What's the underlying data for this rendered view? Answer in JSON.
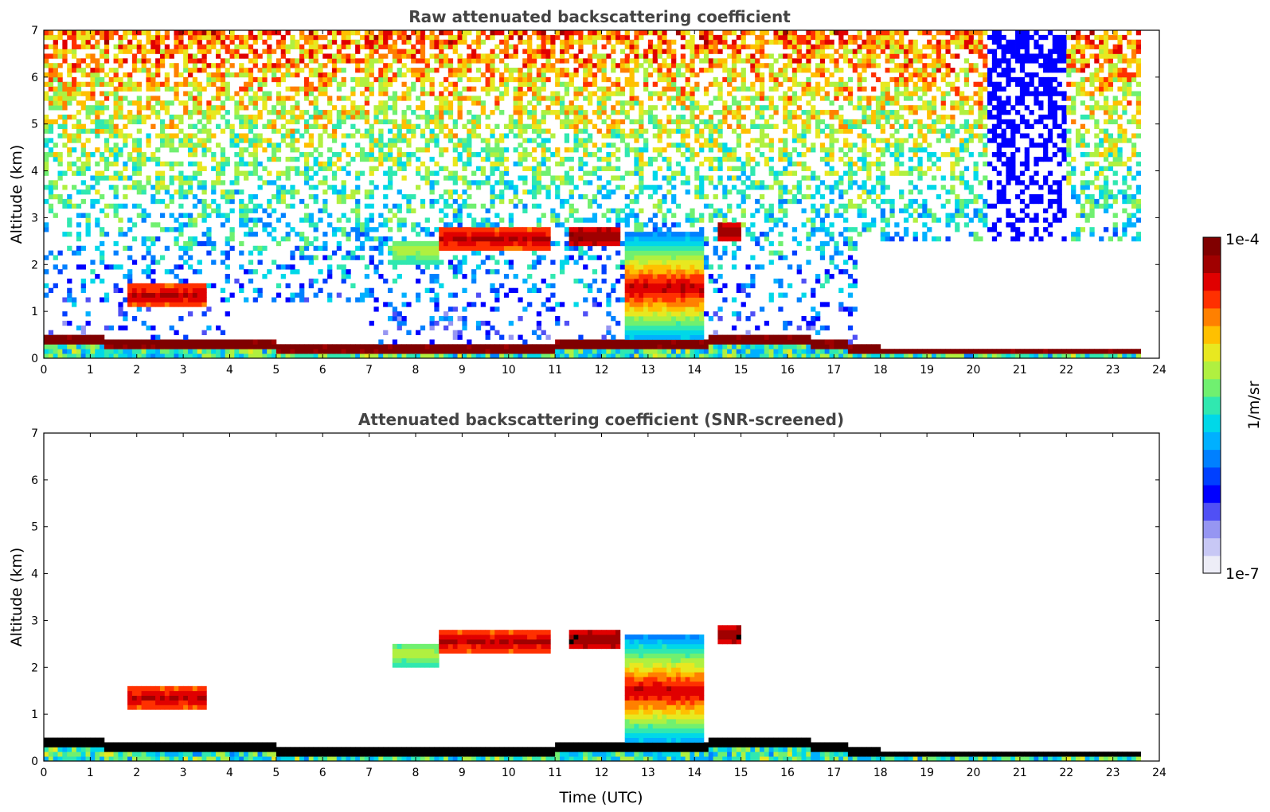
{
  "chart_data": [
    {
      "type": "heatmap",
      "title": "Raw attenuated backscattering coefficient",
      "xlabel": "",
      "ylabel": "Altitude (km)",
      "xlim": [
        0,
        24
      ],
      "ylim": [
        0,
        7
      ],
      "x_ticks": [
        "0",
        "1",
        "2",
        "3",
        "4",
        "5",
        "6",
        "7",
        "8",
        "9",
        "10",
        "11",
        "12",
        "13",
        "14",
        "15",
        "16",
        "17",
        "18",
        "19",
        "20",
        "21",
        "22",
        "23",
        "24"
      ],
      "y_ticks": [
        "0",
        "1",
        "2",
        "3",
        "4",
        "5",
        "6",
        "7"
      ],
      "data_end_hour": 23.6,
      "layers": [
        {
          "feature": "boundary layer",
          "altitude_km": [
            [
              0,
              0.5
            ],
            [
              2,
              0.35
            ],
            [
              5,
              0.3
            ],
            [
              8,
              0.2
            ],
            [
              10,
              0.25
            ],
            [
              11,
              0.3
            ],
            [
              16,
              0.45
            ],
            [
              17,
              0.35
            ],
            [
              18,
              0.2
            ],
            [
              23.6,
              0.2
            ]
          ],
          "level": 0.95
        },
        {
          "feature": "aerosol layer",
          "start": 1.8,
          "end": 3.5,
          "altitude_km": 1.35,
          "level": 0.9
        },
        {
          "feature": "cloud",
          "start": 7.5,
          "end": 8.5,
          "altitude_km": 2.3,
          "level": 0.6
        },
        {
          "feature": "cloud",
          "start": 8.5,
          "end": 10.9,
          "altitude_km": 2.55,
          "level": 0.9
        },
        {
          "feature": "cloud",
          "start": 11.3,
          "end": 12.4,
          "altitude_km": 2.6,
          "level": 0.95
        },
        {
          "feature": "cloud",
          "start": 14.5,
          "end": 15.0,
          "altitude_km": 2.7,
          "level": 0.95
        },
        {
          "feature": "convective cloud",
          "start": 12.5,
          "end": 14.2,
          "altitude_km": 1.5,
          "level": 0.9
        }
      ]
    },
    {
      "type": "heatmap",
      "title": "Attenuated backscattering coefficient (SNR-screened)",
      "xlabel": "Time (UTC)",
      "ylabel": "Altitude (km)",
      "xlim": [
        0,
        24
      ],
      "ylim": [
        0,
        7
      ],
      "x_ticks": [
        "0",
        "1",
        "2",
        "3",
        "4",
        "5",
        "6",
        "7",
        "8",
        "9",
        "10",
        "11",
        "12",
        "13",
        "14",
        "15",
        "16",
        "17",
        "18",
        "19",
        "20",
        "21",
        "22",
        "23",
        "24"
      ],
      "y_ticks": [
        "0",
        "1",
        "2",
        "3",
        "4",
        "5",
        "6",
        "7"
      ],
      "data_end_hour": 23.6,
      "note": "same features as raw panel with low-SNR noise removed; highest values shown in black"
    }
  ],
  "colorbar": {
    "label": "1/m/sr",
    "max_label": "1e-4",
    "min_label": "1e-7",
    "colors": [
      "#ededf7",
      "#c8c8f5",
      "#9696f2",
      "#5050f5",
      "#0000ff",
      "#0040ff",
      "#0080ff",
      "#00b0ff",
      "#00d8e8",
      "#30e8b0",
      "#70f070",
      "#b0f040",
      "#e8e820",
      "#ffc000",
      "#ff8000",
      "#ff3000",
      "#e00000",
      "#a00000",
      "#800000"
    ]
  }
}
